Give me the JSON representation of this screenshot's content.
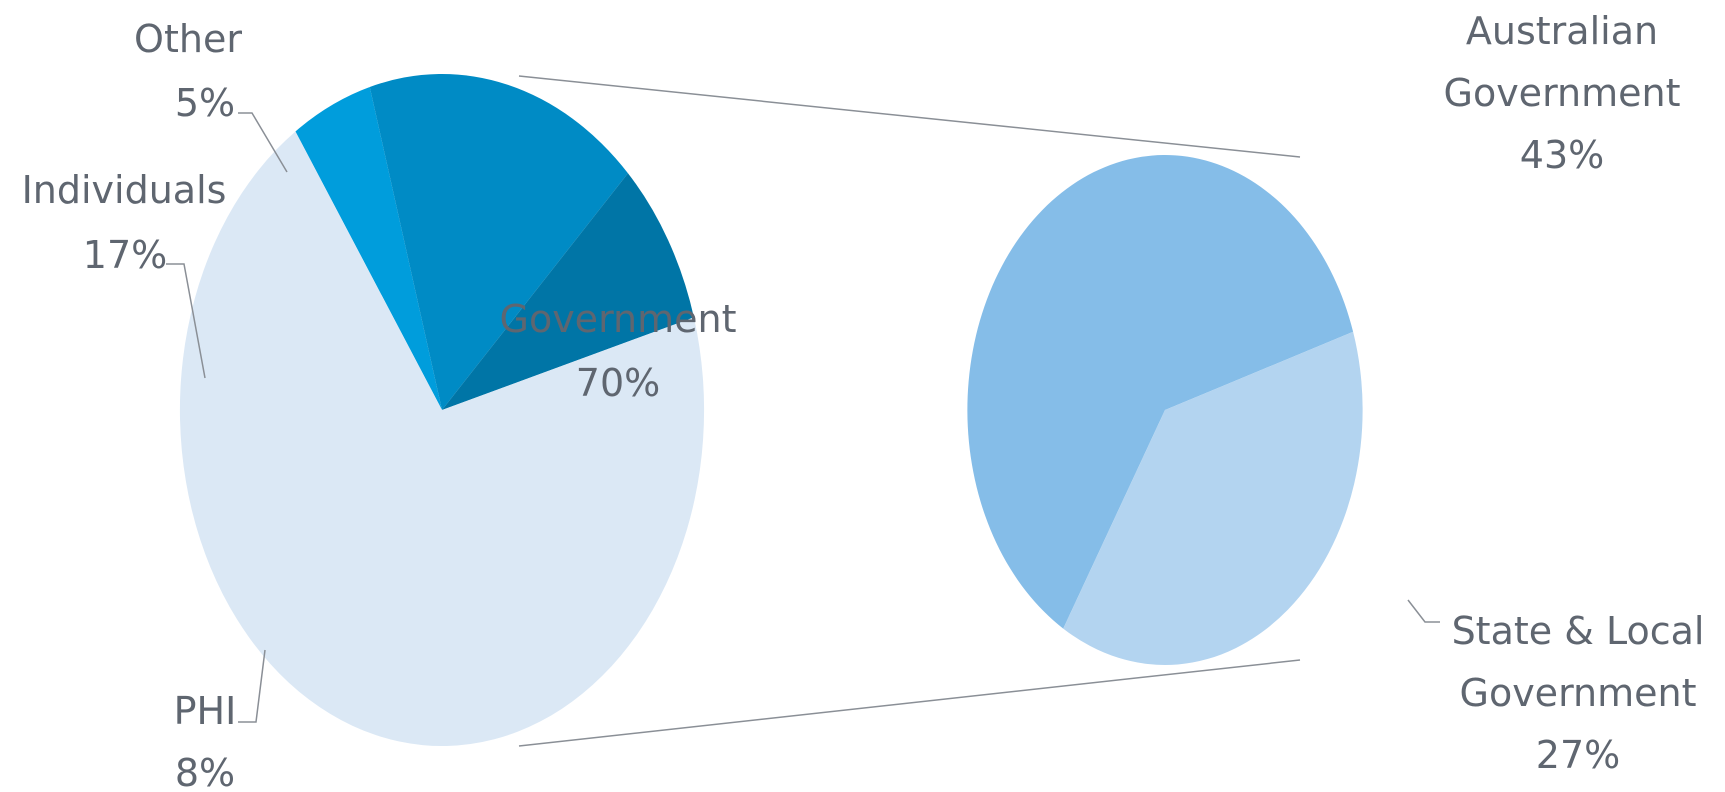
{
  "chart_data": [
    {
      "type": "pie",
      "segments": [
        {
          "name": "Other",
          "label": "Other",
          "value": 5,
          "value_label": "5%",
          "color": "#009ddc"
        },
        {
          "name": "Individuals",
          "label": "Individuals",
          "value": 17,
          "value_label": "17%",
          "color": "#008bc5"
        },
        {
          "name": "PHI",
          "label": "PHI",
          "value": 8,
          "value_label": "8%",
          "color": "#0075a6"
        },
        {
          "name": "Government",
          "label": "Government",
          "value": 70,
          "value_label": "70%",
          "color": "#dbe8f5"
        }
      ]
    },
    {
      "type": "pie",
      "breakdown_of": "Government",
      "segments": [
        {
          "name": "Australian Government",
          "label_lines": [
            "Australian",
            "Government"
          ],
          "value": 43,
          "value_label": "43%",
          "color": "#85bde8"
        },
        {
          "name": "State & Local Government",
          "label_lines": [
            "State & Local",
            "Government"
          ],
          "value": 27,
          "value_label": "27%",
          "color": "#b3d4f0"
        }
      ]
    }
  ]
}
